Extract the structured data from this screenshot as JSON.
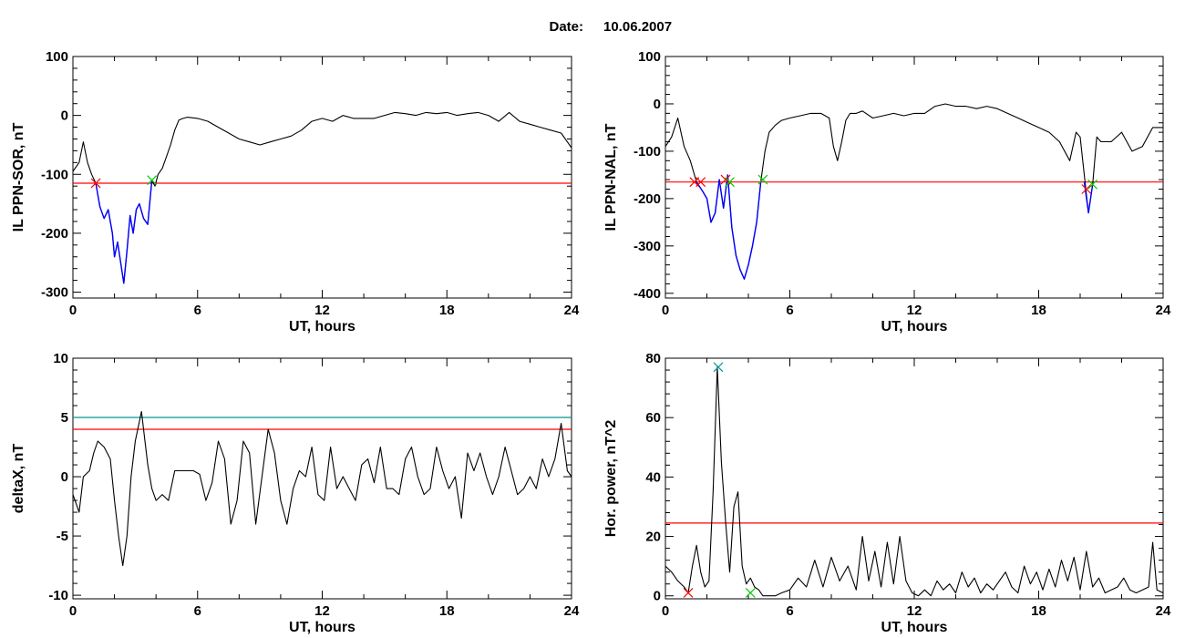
{
  "figure": {
    "title_label": "Date:",
    "title_date": "10.06.2007"
  },
  "chart_data": [
    {
      "type": "line",
      "ylabel": "IL PPN-SOR, nT",
      "xlabel": "UT, hours",
      "xlim": [
        0,
        24
      ],
      "ylim": [
        -310,
        100
      ],
      "xticks": [
        0,
        6,
        12,
        18,
        24
      ],
      "yticks": [
        100,
        0,
        -100,
        -200,
        -300
      ],
      "grid": false,
      "threshold": {
        "value": -115,
        "color": "#ff0000"
      },
      "series": [
        {
          "color": "#000000",
          "x": [
            0,
            0.3,
            0.5,
            0.7,
            0.9,
            1.1,
            1.3,
            1.5,
            1.7,
            1.9,
            2.0,
            2.15,
            2.3,
            2.45,
            2.6,
            2.75,
            2.9,
            3.05,
            3.2,
            3.4,
            3.6,
            3.8,
            3.95,
            4.1,
            4.3,
            4.5,
            4.7,
            4.9,
            5.1,
            5.3,
            5.5,
            6.0,
            6.5,
            7.0,
            7.5,
            8.0,
            8.5,
            9.0,
            9.5,
            10.0,
            10.5,
            11.0,
            11.5,
            12.0,
            12.5,
            13.0,
            13.5,
            14.0,
            14.5,
            15.0,
            15.5,
            16.0,
            16.5,
            17.0,
            17.5,
            18.0,
            18.5,
            19.0,
            19.5,
            20.0,
            20.5,
            21.0,
            21.5,
            22.0,
            22.5,
            23.0,
            23.5,
            24.0
          ],
          "y": [
            -95,
            -80,
            -45,
            -80,
            -100,
            -115,
            -155,
            -175,
            -160,
            -200,
            -240,
            -215,
            -250,
            -285,
            -230,
            -170,
            -200,
            -160,
            -150,
            -175,
            -185,
            -110,
            -120,
            -100,
            -90,
            -70,
            -50,
            -25,
            -8,
            -5,
            -3,
            -5,
            -10,
            -20,
            -30,
            -40,
            -45,
            -50,
            -45,
            -40,
            -35,
            -25,
            -10,
            -5,
            -10,
            0,
            -5,
            -5,
            -5,
            0,
            5,
            3,
            0,
            5,
            3,
            5,
            0,
            3,
            5,
            0,
            -10,
            5,
            -10,
            -15,
            -20,
            -25,
            -30,
            -55
          ]
        },
        {
          "color": "#0000ff",
          "x": [
            1.1,
            1.3,
            1.5,
            1.7,
            1.9,
            2.0,
            2.15,
            2.3,
            2.45,
            2.6,
            2.75,
            2.9,
            3.05,
            3.2,
            3.4,
            3.6,
            3.8
          ],
          "y": [
            -115,
            -155,
            -175,
            -160,
            -200,
            -240,
            -215,
            -250,
            -285,
            -230,
            -170,
            -200,
            -160,
            -150,
            -175,
            -185,
            -110
          ]
        }
      ],
      "markers": [
        {
          "x": 1.1,
          "y": -115,
          "color": "#ff0000"
        },
        {
          "x": 3.8,
          "y": -110,
          "color": "#00cc00"
        }
      ]
    },
    {
      "type": "line",
      "ylabel": "IL PPN-NAL, nT",
      "xlabel": "UT, hours",
      "xlim": [
        0,
        24
      ],
      "ylim": [
        -410,
        100
      ],
      "xticks": [
        0,
        6,
        12,
        18,
        24
      ],
      "yticks": [
        100,
        0,
        -100,
        -200,
        -300,
        -400
      ],
      "grid": false,
      "threshold": {
        "value": -165,
        "color": "#ff0000"
      },
      "series": [
        {
          "color": "#000000",
          "x": [
            0,
            0.3,
            0.6,
            0.9,
            1.2,
            1.5,
            1.8,
            2.0,
            2.2,
            2.4,
            2.6,
            2.8,
            3.0,
            3.2,
            3.4,
            3.6,
            3.8,
            4.0,
            4.2,
            4.4,
            4.6,
            4.8,
            5.0,
            5.3,
            5.6,
            6.0,
            6.5,
            7.0,
            7.5,
            7.9,
            8.1,
            8.3,
            8.5,
            8.7,
            8.9,
            9.2,
            9.5,
            10.0,
            10.5,
            11.0,
            11.5,
            12.0,
            12.5,
            13.0,
            13.5,
            14.0,
            14.5,
            15.0,
            15.5,
            16.0,
            16.5,
            17.0,
            17.5,
            18.0,
            18.5,
            19.0,
            19.5,
            19.8,
            20.0,
            20.2,
            20.4,
            20.6,
            20.8,
            21.0,
            21.5,
            22.0,
            22.5,
            23.0,
            23.5,
            24.0
          ],
          "y": [
            -90,
            -70,
            -30,
            -90,
            -120,
            -165,
            -185,
            -200,
            -250,
            -230,
            -160,
            -220,
            -150,
            -260,
            -320,
            -350,
            -370,
            -340,
            -300,
            -250,
            -165,
            -100,
            -60,
            -45,
            -35,
            -30,
            -25,
            -20,
            -20,
            -30,
            -90,
            -120,
            -80,
            -35,
            -20,
            -20,
            -15,
            -30,
            -25,
            -20,
            -25,
            -20,
            -20,
            -5,
            0,
            -5,
            -5,
            -10,
            -5,
            -10,
            -20,
            -30,
            -40,
            -50,
            -60,
            -80,
            -120,
            -60,
            -70,
            -150,
            -230,
            -170,
            -70,
            -80,
            -80,
            -60,
            -100,
            -90,
            -50,
            -50
          ]
        },
        {
          "color": "#0000ff",
          "x": [
            1.5,
            1.8,
            2.0,
            2.2,
            2.4,
            2.6,
            2.8,
            3.0,
            3.2,
            3.4,
            3.6,
            3.8,
            4.0,
            4.2,
            4.4,
            4.6
          ],
          "y": [
            -165,
            -185,
            -200,
            -250,
            -230,
            -160,
            -220,
            -150,
            -260,
            -320,
            -350,
            -370,
            -340,
            -300,
            -250,
            -165
          ]
        },
        {
          "color": "#0000ff",
          "x": [
            20.2,
            20.4,
            20.6
          ],
          "y": [
            -165,
            -230,
            -170
          ]
        }
      ],
      "markers": [
        {
          "x": 1.4,
          "y": -165,
          "color": "#ff0000"
        },
        {
          "x": 1.7,
          "y": -165,
          "color": "#ff0000"
        },
        {
          "x": 2.9,
          "y": -160,
          "color": "#ff0000"
        },
        {
          "x": 3.1,
          "y": -165,
          "color": "#00cc00"
        },
        {
          "x": 4.7,
          "y": -160,
          "color": "#00cc00"
        },
        {
          "x": 20.3,
          "y": -180,
          "color": "#ff0000"
        },
        {
          "x": 20.6,
          "y": -170,
          "color": "#00cc00"
        }
      ]
    },
    {
      "type": "line",
      "ylabel": "deltaX, nT",
      "xlabel": "UT, hours",
      "xlim": [
        0,
        24
      ],
      "ylim": [
        -10.3,
        10
      ],
      "xticks": [
        0,
        6,
        12,
        18,
        24
      ],
      "yticks": [
        10,
        5,
        0,
        -5,
        -10
      ],
      "grid": false,
      "thresholds": [
        {
          "value": 5,
          "color": "#009999"
        },
        {
          "value": 4,
          "color": "#ff0000"
        }
      ],
      "series": [
        {
          "color": "#000000",
          "x": [
            0,
            0.3,
            0.5,
            0.8,
            1.0,
            1.2,
            1.5,
            1.8,
            2.0,
            2.2,
            2.4,
            2.6,
            2.8,
            3.0,
            3.3,
            3.6,
            3.8,
            4.0,
            4.3,
            4.6,
            4.9,
            5.2,
            5.5,
            5.8,
            6.1,
            6.4,
            6.7,
            7.0,
            7.3,
            7.6,
            7.9,
            8.2,
            8.5,
            8.8,
            9.1,
            9.4,
            9.7,
            10.0,
            10.3,
            10.6,
            10.9,
            11.2,
            11.5,
            11.8,
            12.1,
            12.4,
            12.7,
            13.0,
            13.3,
            13.6,
            13.9,
            14.2,
            14.5,
            14.8,
            15.1,
            15.4,
            15.7,
            16.0,
            16.3,
            16.6,
            16.9,
            17.2,
            17.5,
            17.8,
            18.1,
            18.4,
            18.7,
            19.0,
            19.3,
            19.6,
            19.9,
            20.2,
            20.5,
            20.8,
            21.1,
            21.4,
            21.7,
            22.0,
            22.3,
            22.6,
            22.9,
            23.2,
            23.5,
            23.8,
            24.0
          ],
          "y": [
            -1.5,
            -3,
            0,
            0.5,
            2,
            3,
            2.5,
            1.5,
            -2,
            -5,
            -7.5,
            -5,
            0,
            3,
            5.5,
            1,
            -1,
            -2,
            -1.5,
            -2,
            0.5,
            0.5,
            0.5,
            0.5,
            0.2,
            -2,
            -0.5,
            3,
            1.5,
            -4,
            -2,
            3,
            2,
            -4,
            0,
            4,
            2,
            -2,
            -4,
            -1,
            0.5,
            0,
            2.5,
            -1.5,
            -2,
            2.5,
            -1,
            0,
            -1,
            -2,
            1,
            1.5,
            -0.5,
            2.5,
            -1,
            -1,
            -1.5,
            1.5,
            2.5,
            0,
            -1.5,
            -1,
            2.5,
            0.5,
            -1,
            0,
            -3.5,
            2,
            0.5,
            2,
            0,
            -1.5,
            0,
            2.5,
            0.5,
            -1.5,
            -1,
            0,
            -1,
            1.5,
            0,
            1.5,
            4.5,
            0.5,
            0
          ]
        }
      ]
    },
    {
      "type": "line",
      "ylabel": "Hor. power, nT^2",
      "xlabel": "UT, hours",
      "xlim": [
        0,
        24
      ],
      "ylim": [
        -1,
        80
      ],
      "xticks": [
        0,
        6,
        12,
        18,
        24
      ],
      "yticks": [
        80,
        60,
        40,
        20,
        0
      ],
      "grid": false,
      "threshold": {
        "value": 24.5,
        "color": "#ff0000"
      },
      "series": [
        {
          "color": "#000000",
          "x": [
            0,
            0.3,
            0.6,
            0.9,
            1.1,
            1.3,
            1.5,
            1.7,
            1.9,
            2.1,
            2.3,
            2.5,
            2.7,
            2.9,
            3.1,
            3.3,
            3.5,
            3.7,
            3.9,
            4.1,
            4.3,
            4.5,
            4.7,
            5.0,
            5.3,
            5.6,
            6.0,
            6.4,
            6.8,
            7.2,
            7.6,
            8.0,
            8.4,
            8.8,
            9.2,
            9.5,
            9.8,
            10.1,
            10.4,
            10.7,
            11.0,
            11.3,
            11.6,
            11.9,
            12.2,
            12.5,
            12.8,
            13.1,
            13.4,
            13.7,
            14.0,
            14.3,
            14.6,
            14.9,
            15.2,
            15.5,
            15.8,
            16.1,
            16.4,
            16.7,
            17.0,
            17.3,
            17.6,
            17.9,
            18.2,
            18.5,
            18.8,
            19.1,
            19.4,
            19.7,
            20.0,
            20.3,
            20.6,
            20.9,
            21.2,
            21.5,
            21.8,
            22.1,
            22.4,
            22.7,
            23.0,
            23.3,
            23.5,
            23.7,
            24.0
          ],
          "y": [
            10,
            8,
            5,
            3,
            1,
            10,
            17,
            8,
            3,
            5,
            35,
            77,
            45,
            25,
            8,
            30,
            35,
            10,
            4,
            6,
            3,
            2,
            0,
            0,
            0,
            1,
            2,
            6,
            3,
            12,
            3,
            13,
            5,
            10,
            2,
            20,
            5,
            15,
            3,
            18,
            4,
            20,
            5,
            1,
            0,
            2,
            0,
            5,
            2,
            4,
            1,
            8,
            3,
            6,
            1,
            4,
            2,
            5,
            8,
            3,
            1,
            10,
            4,
            8,
            2,
            9,
            3,
            12,
            5,
            13,
            2,
            15,
            3,
            6,
            1,
            2,
            3,
            6,
            2,
            1,
            2,
            3,
            18,
            2,
            1
          ]
        }
      ],
      "markers": [
        {
          "x": 1.1,
          "y": 1,
          "color": "#ff0000"
        },
        {
          "x": 2.55,
          "y": 77,
          "color": "#009999"
        },
        {
          "x": 4.1,
          "y": 1,
          "color": "#00cc00"
        }
      ]
    }
  ]
}
